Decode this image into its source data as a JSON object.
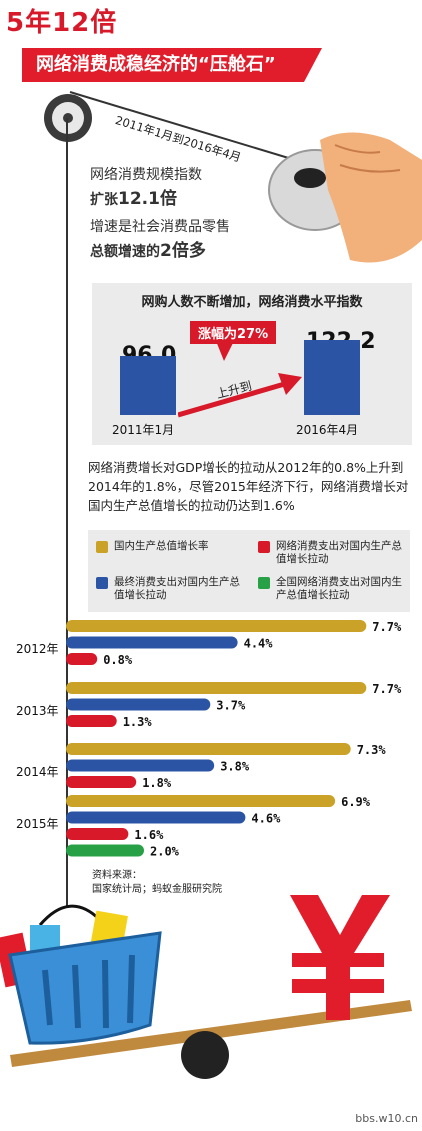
{
  "header": {
    "top_title": "5年12倍",
    "banner": "网络消费成稳经济的“压舱石”"
  },
  "period": "2011年1月到2016年4月",
  "stats": {
    "line1": "网络消费规模指数",
    "line2_prefix": "扩张",
    "line2_value": "12.1倍",
    "line3": "增速是社会消费品零售",
    "line4_prefix": "总额增速的",
    "line4_value": "2倍多"
  },
  "index_chart": {
    "title": "网购人数不断增加，网络消费水平指数",
    "increase_label": "涨幅为27%",
    "arrow_label": "上升到",
    "categories": [
      "2011年1月",
      "2016年4月"
    ],
    "values": [
      96.0,
      122.2
    ],
    "value_labels": [
      "96.0",
      "122.2"
    ],
    "bar_color": "#2b54a4"
  },
  "description": "网络消费增长对GDP增长的拉动从2012年的0.8%上升到2014年的1.8%，尽管2015年经济下行，网络消费增长对国内生产总值增长的拉动仍达到1.6%",
  "chart_data": {
    "type": "bar",
    "orientation": "horizontal",
    "categories": [
      "2012年",
      "2013年",
      "2014年",
      "2015年"
    ],
    "series": [
      {
        "name": "国内生产总值增长率",
        "color": "#c9a227",
        "values": [
          7.7,
          7.7,
          7.3,
          6.9
        ]
      },
      {
        "name": "最终消费支出对国内生产总值增长拉动",
        "color": "#2b54a4",
        "values": [
          4.4,
          3.7,
          3.8,
          4.6
        ]
      },
      {
        "name": "网络消费支出对国内生产总值增长拉动",
        "color": "#d7192a",
        "values": [
          0.8,
          1.3,
          1.8,
          1.6
        ]
      },
      {
        "name": "全国网络消费支出对国内生产总值增长拉动",
        "color": "#27a046",
        "values": [
          null,
          null,
          null,
          2.0
        ]
      }
    ],
    "value_labels": {
      "2012年": [
        "7.7%",
        "4.4%",
        "0.8%"
      ],
      "2013年": [
        "7.7%",
        "3.7%",
        "1.3%"
      ],
      "2014年": [
        "7.3%",
        "3.8%",
        "1.8%"
      ],
      "2015年": [
        "6.9%",
        "4.6%",
        "1.6%",
        "2.0%"
      ]
    },
    "legend_placement": "top",
    "grid": false
  },
  "legend": {
    "gdp": "国内生产总值增长率",
    "online": "网络消费支出对国内生产总值增长拉动",
    "final": "最终消费支出对国内生产总值增长拉动",
    "national": "全国网络消费支出对国内生产总值增长拉动"
  },
  "source": {
    "line1": "资料来源：",
    "line2": "国家统计局；蚂蚁金服研究院"
  },
  "watermark": "bbs.w10.cn",
  "icons": [
    "pulley-icon",
    "mouse-hand-icon",
    "shopping-basket-icon",
    "yuan-symbol-icon",
    "seesaw-icon",
    "arrow-icon"
  ]
}
